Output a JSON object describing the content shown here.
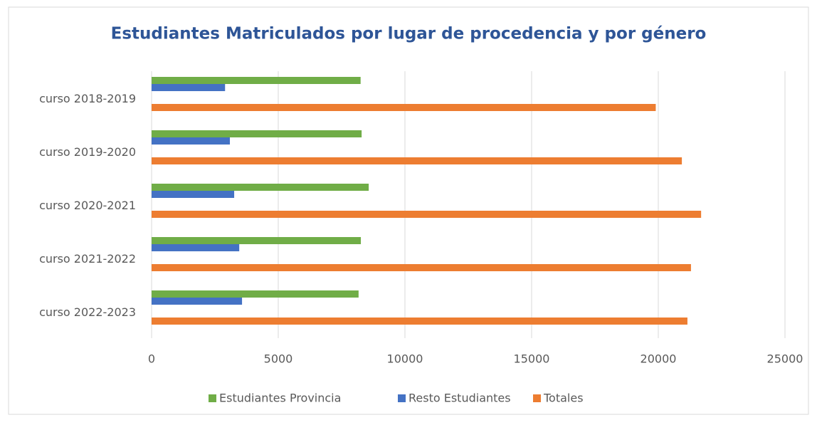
{
  "chart_data": {
    "type": "barh",
    "title": "Estudiantes Matriculados por lugar de procedencia y por género",
    "categories": [
      "curso 2018-2019",
      "curso 2019-2020",
      "curso 2020-2021",
      "curso 2021-2022",
      "curso 2022-2023"
    ],
    "series": [
      {
        "name": "Estudiantes Provincia",
        "color": "#70ad47",
        "values": [
          8250,
          8290,
          8570,
          8260,
          8170
        ]
      },
      {
        "name": "Resto Estudiantes",
        "color": "#4472c4",
        "values": [
          2900,
          3090,
          3260,
          3460,
          3570
        ]
      },
      {
        "name": "Totales",
        "color": "#ed7d31",
        "values": [
          19900,
          20930,
          21690,
          21290,
          21150
        ]
      }
    ],
    "xlim": [
      0,
      25000
    ],
    "xticks": [
      0,
      5000,
      10000,
      15000,
      20000,
      25000
    ],
    "grid": true,
    "legend": "bottom"
  }
}
